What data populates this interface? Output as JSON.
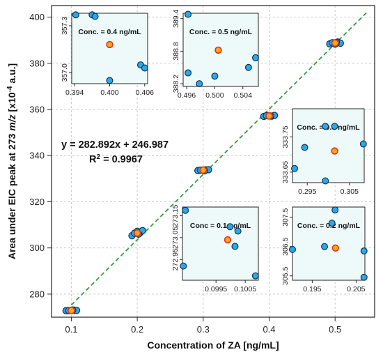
{
  "chart_data": {
    "type": "scatter",
    "main": {
      "xlabel": "Concentration of ZA [ng/mL]",
      "ylabel_parts": [
        "Area under EIC peak at 273 ",
        "m/z",
        " [x10",
        "-4",
        " a.u.]"
      ],
      "xlim": [
        0.07,
        0.56
      ],
      "ylim": [
        270,
        405
      ],
      "x_ticks": [
        0.1,
        0.2,
        0.3,
        0.4,
        0.5
      ],
      "x_tick_labels": [
        "0.1",
        "0.2",
        "0.3",
        "0.4",
        "0.5"
      ],
      "y_ticks": [
        280,
        300,
        320,
        340,
        360,
        380,
        400
      ],
      "y_tick_labels": [
        "280",
        "300",
        "320",
        "340",
        "360",
        "380",
        "400"
      ],
      "grid": true,
      "equation": "y = 282.892x + 246.987",
      "r2_parts": [
        "R",
        "2",
        " = 0.9967"
      ],
      "fit": {
        "slope": 282.892,
        "intercept": 246.987,
        "x_range": [
          0.1,
          0.55
        ],
        "color": "#2e9e3e",
        "style": "dashed"
      },
      "replicates": [
        {
          "x": 0.1,
          "ys": [
            272.8,
            272.9,
            273.0,
            273.05,
            272.95,
            273.1
          ]
        },
        {
          "x": 0.2,
          "ys": [
            305.3,
            306.4,
            307.2,
            306.6,
            307.5,
            306.0
          ]
        },
        {
          "x": 0.3,
          "ys": [
            333.5,
            333.7,
            333.6,
            333.8,
            333.9,
            333.4
          ]
        },
        {
          "x": 0.4,
          "ys": [
            357.0,
            357.3,
            357.2,
            357.1,
            357.4,
            357.15
          ]
        },
        {
          "x": 0.5,
          "ys": [
            388.4,
            388.9,
            388.3,
            389.2,
            388.7,
            389.0
          ]
        }
      ],
      "replicate_x_offsets": [
        -0.008,
        -0.004,
        0.0,
        0.004,
        0.008,
        0.002
      ],
      "means": [
        {
          "x": 0.1,
          "y": 272.9
        },
        {
          "x": 0.2,
          "y": 306.5
        },
        {
          "x": 0.3,
          "y": 333.7
        },
        {
          "x": 0.4,
          "y": 357.2
        },
        {
          "x": 0.5,
          "y": 388.8
        }
      ]
    },
    "insets": [
      {
        "title": "Conc. = 0.4 ng/mL",
        "xlim": [
          0.3935,
          0.4065
        ],
        "ylim": [
          356.93,
          357.38
        ],
        "x_ticks": [
          0.394,
          0.4,
          0.406
        ],
        "x_tick_labels": [
          "0.394",
          "0.400",
          "0.406"
        ],
        "y_ticks": [
          357.0,
          357.3
        ],
        "y_tick_labels": [
          "357.0",
          "357.3"
        ],
        "points": [
          [
            0.3942,
            357.37
          ],
          [
            0.397,
            357.37
          ],
          [
            0.3975,
            357.36
          ],
          [
            0.4,
            356.95
          ],
          [
            0.4053,
            357.05
          ],
          [
            0.406,
            357.03
          ]
        ],
        "mean": [
          0.4,
          357.18
        ]
      },
      {
        "title": "Conc. = 0.5 ng/mL",
        "xlim": [
          0.4955,
          0.5062
        ],
        "ylim": [
          388.15,
          389.5
        ],
        "x_ticks": [
          0.496,
          0.5,
          0.504
        ],
        "x_tick_labels": [
          "0.496",
          "0.500",
          "0.504"
        ],
        "y_ticks": [
          388.2,
          388.8,
          389.4
        ],
        "y_tick_labels": [
          "388.2",
          "388.8",
          "389.4"
        ],
        "points": [
          [
            0.4962,
            389.48
          ],
          [
            0.4962,
            388.4
          ],
          [
            0.4978,
            388.2
          ],
          [
            0.5,
            388.34
          ],
          [
            0.5048,
            388.5
          ],
          [
            0.5058,
            388.68
          ]
        ],
        "mean": [
          0.5005,
          388.82
        ]
      },
      {
        "title": "Conc. = 0.3 ng/mL",
        "xlim": [
          0.2915,
          0.3085
        ],
        "ylim": [
          333.62,
          333.83
        ],
        "x_ticks": [
          0.295,
          0.305
        ],
        "x_tick_labels": [
          "0.295",
          "0.305"
        ],
        "y_ticks": [
          333.65,
          333.75
        ],
        "y_tick_labels": [
          "333.65",
          "333.75"
        ],
        "points": [
          [
            0.292,
            333.66
          ],
          [
            0.2944,
            333.72
          ],
          [
            0.2993,
            333.78
          ],
          [
            0.2993,
            333.625
          ],
          [
            0.3015,
            333.78
          ],
          [
            0.3083,
            333.73
          ]
        ],
        "mean": [
          0.3015,
          333.71
        ]
      },
      {
        "title": "Conc = 0.1 ng/mL",
        "xlim": [
          0.09835,
          0.10095
        ],
        "ylim": [
          272.855,
          273.19
        ],
        "x_ticks": [
          0.0995,
          0.1005
        ],
        "x_tick_labels": [
          "0.0995",
          "0.1005"
        ],
        "y_ticks": [
          272.95,
          273.05,
          273.15
        ],
        "y_tick_labels": [
          "272.95",
          "273.05",
          "273.15"
        ],
        "points": [
          [
            0.09845,
            273.175
          ],
          [
            0.09838,
            272.92
          ],
          [
            0.09998,
            273.1
          ],
          [
            0.10025,
            273.08
          ],
          [
            0.10015,
            273.01
          ],
          [
            0.10085,
            272.875
          ]
        ],
        "mean": [
          0.0999,
          273.04
        ]
      },
      {
        "title": "Conc. = 0.2 ng/mL",
        "xlim": [
          0.1905,
          0.207
        ],
        "ylim": [
          305.35,
          307.85
        ],
        "x_ticks": [
          0.195,
          0.205
        ],
        "x_tick_labels": [
          "0.195",
          "0.205"
        ],
        "y_ticks": [
          305.5,
          306.5,
          307.5
        ],
        "y_tick_labels": [
          "305.5",
          "306.5",
          "307.5"
        ],
        "points": [
          [
            0.1905,
            306.4
          ],
          [
            0.1978,
            306.5
          ],
          [
            0.1995,
            307.3
          ],
          [
            0.2002,
            307.75
          ],
          [
            0.2068,
            306.35
          ],
          [
            0.2068,
            305.45
          ]
        ],
        "mean": [
          0.2003,
          306.45
        ]
      }
    ],
    "colors": {
      "replicate_fill": "#2aa8ee",
      "replicate_stroke": "#11334f",
      "mean_fill": "#f4a91a",
      "mean_stroke": "#e0301e",
      "inset_bg": "#eef9f9",
      "grid": "#c8c8c8"
    }
  }
}
